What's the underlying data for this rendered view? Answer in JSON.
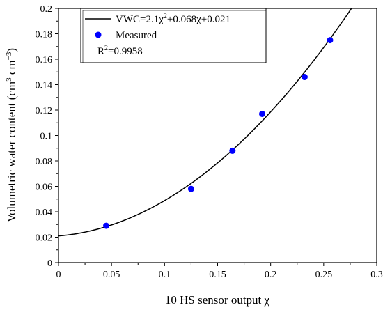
{
  "chart_data": {
    "type": "scatter",
    "title": "",
    "xlabel": "10 HS sensor output χ",
    "ylabel": {
      "prefix": "Volumetric water content (cm",
      "sup1": "3",
      "mid": " cm",
      "sup2": "−3",
      "suffix": ")"
    },
    "xlim": [
      0,
      0.3
    ],
    "ylim": [
      0,
      0.2
    ],
    "x_ticks": [
      "0",
      "0.05",
      "0.1",
      "0.15",
      "0.2",
      "0.25",
      "0.3"
    ],
    "y_ticks": [
      "0",
      "0.02",
      "0.04",
      "0.06",
      "0.08",
      "0.1",
      "0.12",
      "0.14",
      "0.16",
      "0.18",
      "0.2"
    ],
    "legend_position": "top-left",
    "series": [
      {
        "name": "Measured",
        "kind": "scatter",
        "color": "#0000ff",
        "x": [
          0.045,
          0.125,
          0.164,
          0.192,
          0.232,
          0.256
        ],
        "y": [
          0.029,
          0.058,
          0.088,
          0.117,
          0.146,
          0.175
        ]
      },
      {
        "kind": "line",
        "color": "#000000",
        "equation": {
          "a": 2.1,
          "b": 0.068,
          "c": 0.021
        },
        "label_parts": {
          "lhs": "VWC=2.1χ",
          "sup": "2",
          "rhs": "+0.068χ+0.021"
        }
      }
    ],
    "annotation": {
      "base": "R",
      "sup": "2",
      "value": "=0.9958"
    }
  }
}
